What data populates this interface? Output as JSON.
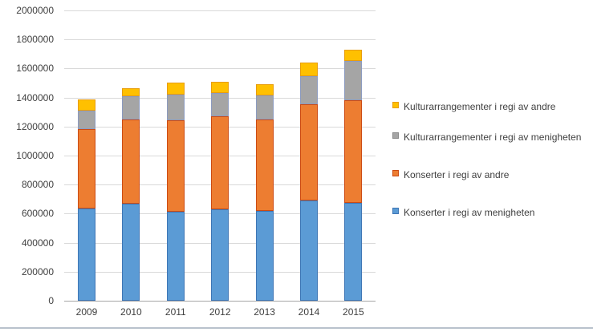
{
  "chart_data": {
    "type": "bar",
    "stacked": true,
    "title": "",
    "xlabel": "",
    "ylabel": "",
    "categories": [
      "2009",
      "2010",
      "2011",
      "2012",
      "2013",
      "2014",
      "2015"
    ],
    "series": [
      {
        "name": "Konserter i regi av menigheten",
        "color": "#5B9BD5",
        "border": "#3E76B5",
        "values": [
          635000,
          670000,
          615000,
          630000,
          620000,
          690000,
          675000
        ]
      },
      {
        "name": "Konserter i regi av andre",
        "color": "#ED7D31",
        "border": "#CC4B13",
        "values": [
          545000,
          580000,
          630000,
          640000,
          630000,
          665000,
          705000
        ]
      },
      {
        "name": "Kulturarrangementer i regi av menigheten",
        "color": "#A5A5A5",
        "border": "#8C9BC0",
        "values": [
          130000,
          160000,
          175000,
          160000,
          165000,
          190000,
          270000
        ]
      },
      {
        "name": "Kulturarrangementer i regi av andre",
        "color": "#FFC000",
        "border": "#E89D0C",
        "values": [
          75000,
          55000,
          85000,
          80000,
          75000,
          95000,
          80000
        ]
      }
    ],
    "y_axis": {
      "min": 0,
      "max": 2000000,
      "step": 200000,
      "tick_labels": [
        "0",
        "200000",
        "400000",
        "600000",
        "800000",
        "1000000",
        "1200000",
        "1400000",
        "1600000",
        "1800000",
        "2000000"
      ]
    },
    "legend_position": "right",
    "gridlines": true,
    "legend": [
      {
        "label": "Kulturarrangementer i regi av andre",
        "color": "#FFC000",
        "border": "#E89D0C"
      },
      {
        "label": "Kulturarrangementer i regi av menigheten",
        "color": "#A5A5A5",
        "border": "#8A8A8A"
      },
      {
        "label": "Konserter i regi av andre",
        "color": "#ED7D31",
        "border": "#CC4B13"
      },
      {
        "label": "Konserter i regi av menigheten",
        "color": "#5B9BD5",
        "border": "#3E76B5"
      }
    ],
    "style": {
      "gridline_color": "#D9D9D9",
      "axis_line_color": "#A6A6A6",
      "label_color": "#404040",
      "bottom_frame_color": "#B9C2CC"
    }
  }
}
